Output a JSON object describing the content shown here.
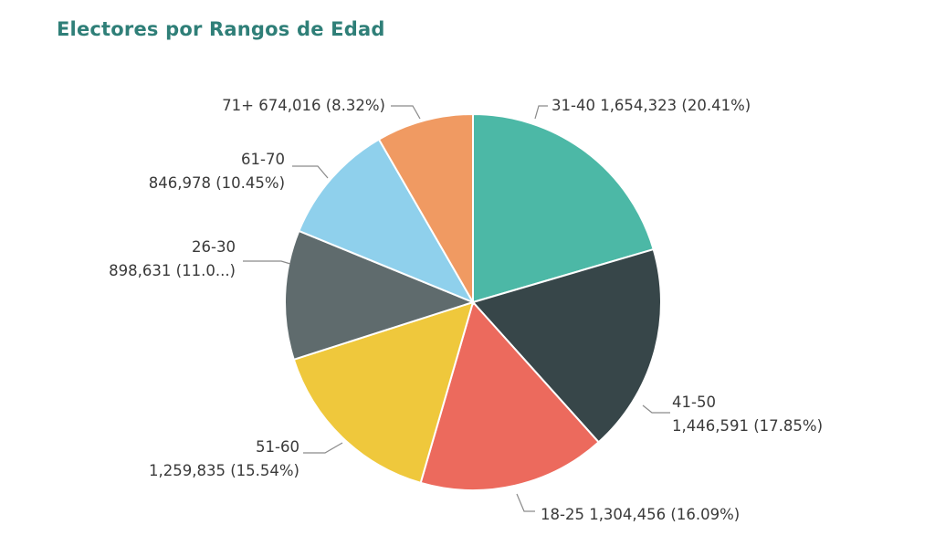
{
  "chart_data": {
    "type": "pie",
    "title": "Electores por Rangos de Edad",
    "slices": [
      {
        "name": "31-40",
        "value": 1654323,
        "value_label": "1,654,323",
        "percent_label": "(20.41%)",
        "color": "#4cb8a6"
      },
      {
        "name": "41-50",
        "value": 1446591,
        "value_label": "1,446,591",
        "percent_label": "(17.85%)",
        "color": "#374649"
      },
      {
        "name": "18-25",
        "value": 1304456,
        "value_label": "1,304,456",
        "percent_label": "(16.09%)",
        "color": "#ec6a5d"
      },
      {
        "name": "51-60",
        "value": 1259835,
        "value_label": "1,259,835",
        "percent_label": "(15.54%)",
        "color": "#efc83c"
      },
      {
        "name": "26-30",
        "value": 898631,
        "value_label": "898,631",
        "percent_label": "(11.0...)",
        "color": "#5f6b6d"
      },
      {
        "name": "61-70",
        "value": 846978,
        "value_label": "846,978",
        "percent_label": "(10.45%)",
        "color": "#8fd0ec"
      },
      {
        "name": "71+",
        "value": 674016,
        "value_label": "674,016",
        "percent_label": "(8.32%)",
        "color": "#f09a62"
      }
    ]
  }
}
